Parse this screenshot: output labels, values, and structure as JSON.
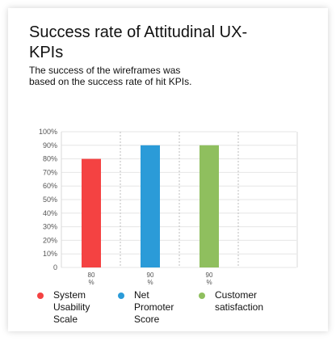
{
  "title": "Success rate of Attitudinal UX-KPIs",
  "subtitle": "The success of the wireframes was based on the success rate of hit KPIs.",
  "chart_data": {
    "type": "bar",
    "categories": [
      "System Usability Scale",
      "Net Promoter Score",
      "Customer satisfaction"
    ],
    "values": [
      80,
      90,
      90
    ],
    "value_labels": [
      "80 %",
      "90 %",
      "90 %"
    ],
    "colors": [
      "#f44242",
      "#2b9bd8",
      "#8fbf5e"
    ],
    "yticks": [
      "0",
      "10%",
      "20%",
      "30%",
      "40%",
      "50%",
      "60%",
      "70%",
      "80%",
      "90%",
      "100%"
    ],
    "ylim": [
      0,
      100
    ],
    "grid": true,
    "legend": "bottom",
    "legend_entries": [
      "System Usability Scale",
      "Net Promoter Score",
      "Customer satisfaction"
    ]
  }
}
